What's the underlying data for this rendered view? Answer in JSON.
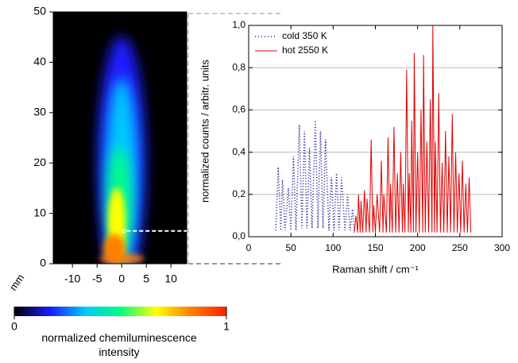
{
  "chart_data": [
    {
      "type": "image",
      "xlim": [
        -13.9,
        13.2
      ],
      "xticks": [
        -10,
        -5,
        0,
        5,
        10
      ],
      "ylim": [
        0,
        50
      ],
      "yticks": [
        0,
        10,
        20,
        30,
        40,
        50
      ],
      "ylabel": "mm",
      "colorbar": {
        "ticks": [
          0,
          1
        ],
        "label": "normalized chemiluminescence intensity",
        "colors": [
          "#000000",
          "#1a1aff",
          "#00c8ff",
          "#00ff80",
          "#ffff00",
          "#ff8000",
          "#ff2000"
        ]
      }
    },
    {
      "type": "line",
      "xlabel": "Raman shift / cm⁻¹",
      "ylabel": "normalized counts / arbitr. units",
      "xlim": [
        0,
        300
      ],
      "xticks": [
        0,
        50,
        100,
        150,
        200,
        250,
        300
      ],
      "ylim": [
        0,
        1
      ],
      "yticks": [
        {
          "value": 0,
          "label": "0,0"
        },
        {
          "value": 0.2,
          "label": "0,2"
        },
        {
          "value": 0.4,
          "label": "0,4"
        },
        {
          "value": 0.6,
          "label": "0,6"
        },
        {
          "value": 0.8,
          "label": "0,8"
        },
        {
          "value": 1,
          "label": "1,0"
        }
      ],
      "grid": true,
      "legend": "top-left",
      "series": [
        {
          "name": "cold 350 K",
          "color": "#1a1a9c",
          "style": "dotted",
          "x": [
            32,
            35,
            38,
            40,
            43,
            47,
            50,
            53,
            56,
            60,
            63,
            66,
            69,
            72,
            75,
            79,
            82,
            85,
            88,
            91,
            95,
            98,
            101,
            104,
            107,
            110,
            114,
            117,
            120,
            123,
            125
          ],
          "values": [
            0.03,
            0.33,
            0.03,
            0.27,
            0.03,
            0.23,
            0.03,
            0.38,
            0.03,
            0.53,
            0.04,
            0.5,
            0.04,
            0.42,
            0.04,
            0.55,
            0.04,
            0.5,
            0.04,
            0.46,
            0.03,
            0.28,
            0.03,
            0.3,
            0.03,
            0.28,
            0.03,
            0.2,
            0.03,
            0.13,
            0.02
          ]
        },
        {
          "name": "hot 2550 K",
          "color": "#e00000",
          "style": "solid",
          "x": [
            125,
            127,
            129,
            130,
            132,
            133,
            135,
            137,
            139,
            140,
            143,
            145,
            147,
            148,
            150,
            152,
            155,
            157,
            159,
            160,
            163,
            165,
            167,
            168,
            170,
            172,
            174,
            176,
            178,
            180,
            182,
            183,
            185,
            187,
            189,
            190,
            192,
            193,
            195,
            196,
            198,
            200,
            202,
            204,
            206,
            207,
            209,
            211,
            213,
            215,
            217,
            218,
            220,
            221,
            223,
            225,
            227,
            229,
            231,
            233,
            235,
            237,
            239,
            241,
            243,
            245,
            247,
            249,
            251,
            253,
            255,
            257,
            259,
            261,
            263
          ],
          "values": [
            0.02,
            0.1,
            0.02,
            0.2,
            0.02,
            0.17,
            0.02,
            0.22,
            0.02,
            0.18,
            0.02,
            0.46,
            0.02,
            0.15,
            0.02,
            0.2,
            0.02,
            0.36,
            0.02,
            0.2,
            0.02,
            0.47,
            0.02,
            0.25,
            0.02,
            0.52,
            0.02,
            0.3,
            0.02,
            0.4,
            0.02,
            0.25,
            0.02,
            0.79,
            0.02,
            0.3,
            0.02,
            0.55,
            0.02,
            0.87,
            0.02,
            0.4,
            0.02,
            0.6,
            0.02,
            0.86,
            0.02,
            0.45,
            0.02,
            0.65,
            0.02,
            1.0,
            0.02,
            0.45,
            0.02,
            0.68,
            0.02,
            0.35,
            0.02,
            0.5,
            0.02,
            0.38,
            0.02,
            0.58,
            0.02,
            0.4,
            0.02,
            0.3,
            0.02,
            0.36,
            0.02,
            0.25,
            0.02,
            0.28,
            0.02
          ]
        }
      ]
    }
  ]
}
